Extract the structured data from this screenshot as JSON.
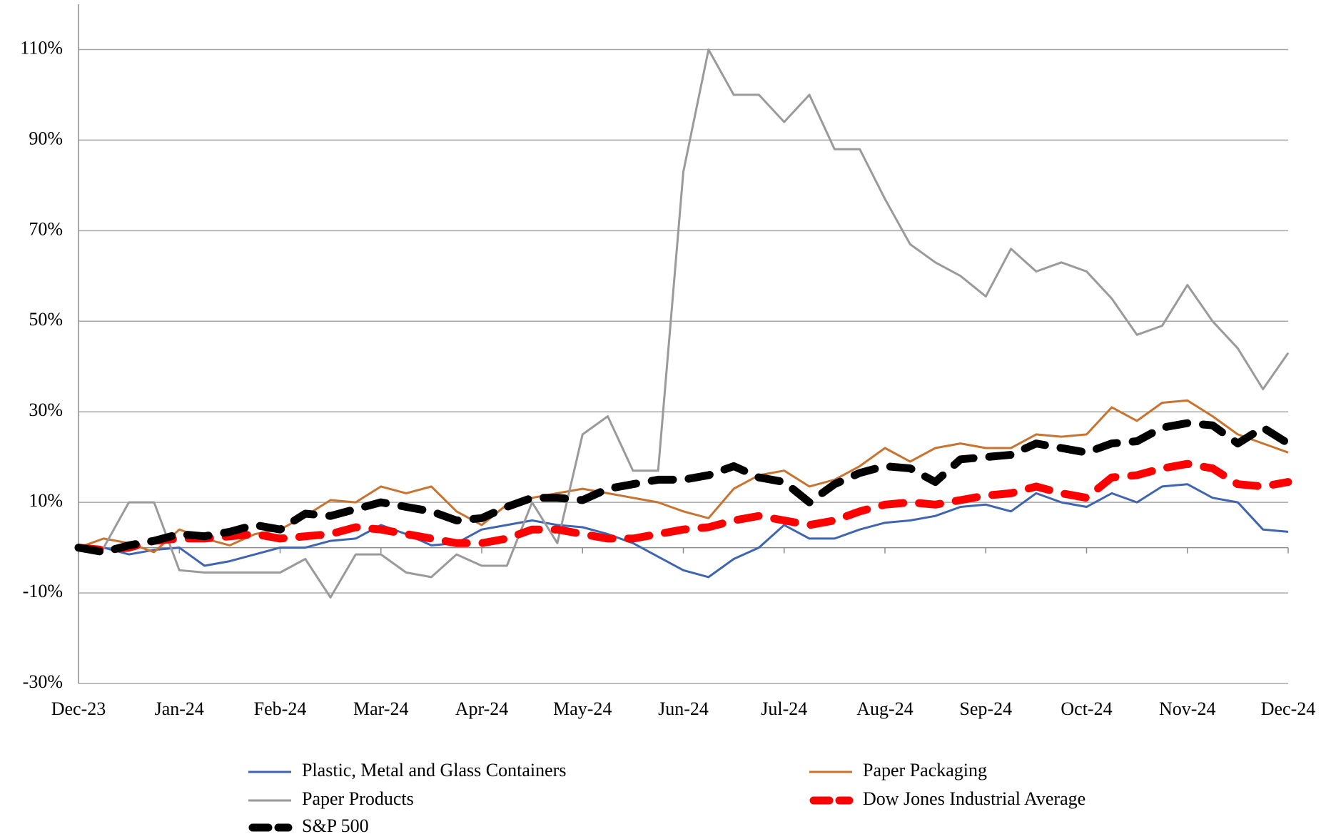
{
  "chart_data": {
    "type": "line",
    "categories": [
      "Dec-23",
      null,
      null,
      null,
      "Jan-24",
      null,
      null,
      null,
      "Feb-24",
      null,
      null,
      null,
      "Mar-24",
      null,
      null,
      null,
      "Apr-24",
      null,
      null,
      null,
      "May-24",
      null,
      null,
      null,
      "Jun-24",
      null,
      null,
      null,
      "Jul-24",
      null,
      null,
      null,
      "Aug-24",
      null,
      null,
      null,
      "Sep-24",
      null,
      null,
      null,
      "Oct-24",
      null,
      null,
      null,
      "Nov-24",
      null,
      null,
      null,
      "Dec-24"
    ],
    "ylim": [
      -30,
      120
    ],
    "yticks": [
      {
        "value": -30,
        "label": "-30%"
      },
      {
        "value": -10,
        "label": "-10%"
      },
      {
        "value": 10,
        "label": "10%"
      },
      {
        "value": 30,
        "label": "30%"
      },
      {
        "value": 50,
        "label": "50%"
      },
      {
        "value": 70,
        "label": "70%"
      },
      {
        "value": 90,
        "label": "90%"
      },
      {
        "value": 110,
        "label": "110%"
      }
    ],
    "grid": true,
    "series": [
      {
        "name": "Plastic, Metal and Glass Containers",
        "color": "#3f65b0",
        "dashed": false,
        "values": [
          0,
          0,
          -1.5,
          -0.5,
          0,
          -4,
          -3,
          -1.5,
          0,
          0,
          1.5,
          2,
          5,
          3,
          0.5,
          1,
          4,
          5,
          6,
          5,
          4.5,
          3,
          1,
          -2,
          -5,
          -6.5,
          -2.5,
          0,
          5,
          2,
          2,
          4,
          5.5,
          6,
          7,
          9,
          9.5,
          8,
          12,
          10,
          9,
          12,
          10,
          13.5,
          14,
          11,
          10,
          4,
          3.5
        ]
      },
      {
        "name": "Paper Packaging",
        "color": "#c8732f",
        "dashed": false,
        "values": [
          0,
          2,
          1,
          -1,
          4,
          2,
          0.5,
          3,
          4,
          7,
          10.5,
          10,
          13.5,
          12,
          13.5,
          8,
          5,
          9.5,
          11,
          12,
          13,
          12,
          11,
          10,
          8,
          6.5,
          13,
          16,
          17,
          13.5,
          15,
          18,
          22,
          19,
          22,
          23,
          22,
          22,
          25,
          24.5,
          25,
          31,
          28,
          32,
          32.5,
          29,
          25,
          23,
          21
        ]
      },
      {
        "name": "Paper Products",
        "color": "#9a9a9a",
        "dashed": false,
        "values": [
          0,
          0,
          10,
          10,
          -5,
          -5.5,
          -5.5,
          -5.5,
          -5.5,
          -2.5,
          -11,
          -1.5,
          -1.5,
          -5.5,
          -6.5,
          -1.5,
          -4,
          -4,
          10,
          1,
          25,
          29,
          17,
          17,
          83,
          110,
          100,
          100,
          94,
          100,
          88,
          88,
          77,
          67,
          63,
          60,
          55.5,
          66,
          61,
          63,
          61,
          55,
          47,
          49,
          58,
          50,
          44,
          35,
          43
        ]
      },
      {
        "name": "Dow Jones Industrial Average",
        "color": "#ff0000",
        "dashed": true,
        "values": [
          0,
          -0.5,
          0,
          1.5,
          2,
          2,
          2.5,
          3,
          2,
          2.5,
          3,
          4.5,
          4,
          3,
          2,
          1,
          1,
          2,
          4,
          4,
          3,
          2,
          2,
          3,
          4,
          4.5,
          6,
          7,
          6,
          5,
          6,
          8,
          9.5,
          10,
          9.5,
          10.5,
          11.5,
          12,
          13.5,
          12,
          11,
          15.5,
          16,
          17.5,
          18.5,
          17.5,
          14,
          13.5,
          14.5
        ]
      },
      {
        "name": "S&P 500",
        "color": "#000000",
        "dashed": true,
        "values": [
          0,
          -1,
          0.5,
          1.5,
          3,
          2.5,
          3.5,
          5,
          4,
          7.5,
          7,
          8.5,
          10,
          9,
          8,
          6,
          6.5,
          9,
          11,
          11,
          10.5,
          13,
          14,
          15,
          15,
          16,
          18,
          15.5,
          14.5,
          10,
          14,
          16.5,
          18,
          17.5,
          14.5,
          19.5,
          20,
          20.5,
          23,
          22,
          21,
          23,
          23.5,
          26.5,
          27.5,
          27,
          23,
          26.5,
          23
        ]
      }
    ]
  }
}
